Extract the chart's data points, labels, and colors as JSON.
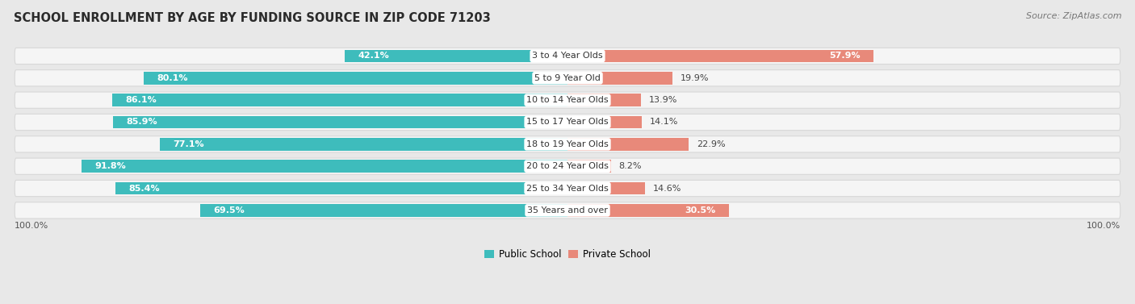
{
  "title": "SCHOOL ENROLLMENT BY AGE BY FUNDING SOURCE IN ZIP CODE 71203",
  "source": "Source: ZipAtlas.com",
  "categories": [
    "3 to 4 Year Olds",
    "5 to 9 Year Old",
    "10 to 14 Year Olds",
    "15 to 17 Year Olds",
    "18 to 19 Year Olds",
    "20 to 24 Year Olds",
    "25 to 34 Year Olds",
    "35 Years and over"
  ],
  "public_pct": [
    42.1,
    80.1,
    86.1,
    85.9,
    77.1,
    91.8,
    85.4,
    69.5
  ],
  "private_pct": [
    57.9,
    19.9,
    13.9,
    14.1,
    22.9,
    8.2,
    14.6,
    30.5
  ],
  "public_color": "#3EBCBC",
  "private_color": "#E8897A",
  "bg_color": "#e8e8e8",
  "row_bg_color": "#f5f5f5",
  "row_border_color": "#d8d8d8",
  "label_left_100": "100.0%",
  "label_right_100": "100.0%",
  "legend_public": "Public School",
  "legend_private": "Private School",
  "title_fontsize": 10.5,
  "source_fontsize": 8,
  "bar_label_fontsize": 8,
  "category_fontsize": 8,
  "axis_label_fontsize": 8
}
